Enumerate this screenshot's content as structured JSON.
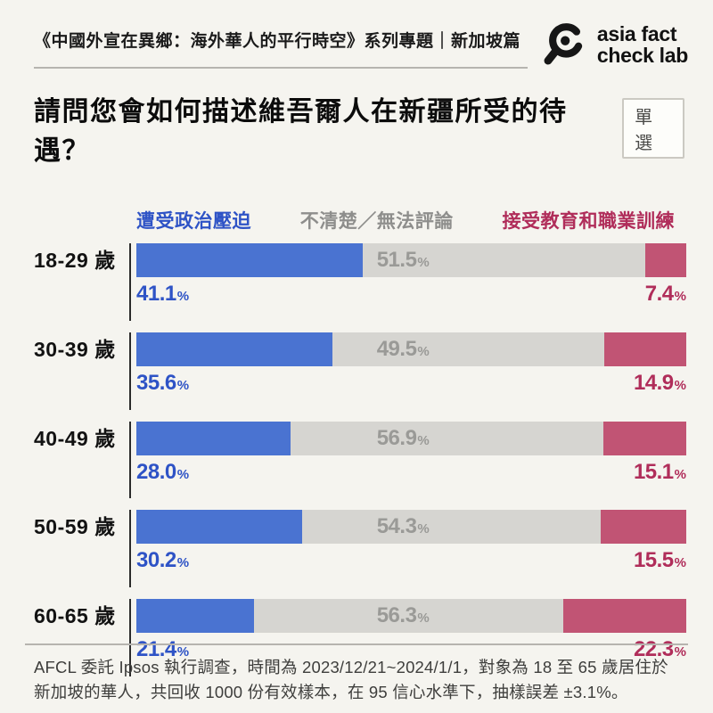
{
  "header": {
    "series_title": "《中國外宣在異鄉：海外華人的平行時空》系列專題｜新加坡篇",
    "logo_line1": "asia fact",
    "logo_line2": "check lab"
  },
  "question": {
    "title": "請問您會如何描述維吾爾人在新疆所受的待遇？",
    "badge": "單選"
  },
  "chart_data": {
    "type": "bar",
    "stacked": true,
    "orientation": "horizontal",
    "legend_position": "top",
    "xlim": [
      0,
      100
    ],
    "unit": "%",
    "categories": [
      "18-29 歲",
      "30-39 歲",
      "40-49 歲",
      "50-59 歲",
      "60-65 歲"
    ],
    "series": [
      {
        "name": "遭受政治壓迫",
        "color": "#4a73d1",
        "label_color": "#2e53c6",
        "values": [
          41.1,
          35.6,
          28.0,
          30.2,
          21.4
        ]
      },
      {
        "name": "不清楚／無法評論",
        "color": "#d6d5d1",
        "label_color": "#8e8e8c",
        "inbar_label_color": "#9a9a97",
        "values": [
          51.5,
          49.5,
          56.9,
          54.3,
          56.3
        ]
      },
      {
        "name": "接受教育和職業訓練",
        "color": "#c15474",
        "label_color": "#b02d5a",
        "values": [
          7.4,
          14.9,
          15.1,
          15.5,
          22.3
        ]
      }
    ]
  },
  "footer": {
    "note": "AFCL 委託 Ipsos 執行調查，時間為 2023/12/21~2024/1/1，對象為 18 至 65 歲居住於新加坡的華人，共回收 1000 份有效樣本，在 95 信心水準下，抽樣誤差 ±3.1%。"
  },
  "colors": {
    "background": "#f5f4ef",
    "axis_line": "#2b2b2b",
    "divider": "#b6b4af"
  }
}
